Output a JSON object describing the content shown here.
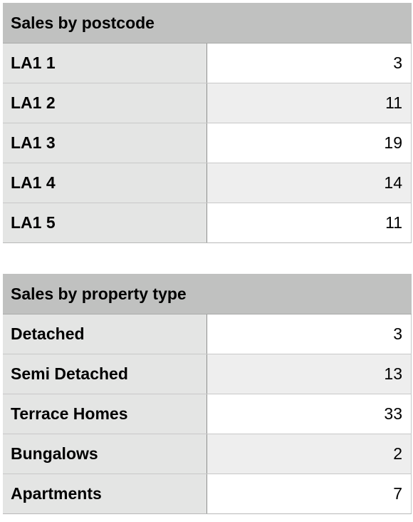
{
  "chart_data": [
    {
      "type": "table",
      "title": "Sales by postcode",
      "categories": [
        "LA1 1",
        "LA1 2",
        "LA1 3",
        "LA1 4",
        "LA1 5"
      ],
      "values": [
        "3",
        "11",
        "19",
        "14",
        "11"
      ]
    },
    {
      "type": "table",
      "title": "Sales by property type",
      "categories": [
        "Detached",
        "Semi Detached",
        "Terrace Homes",
        "Bungalows",
        "Apartments"
      ],
      "values": [
        "3",
        "13",
        "33",
        "2",
        "7"
      ]
    }
  ]
}
